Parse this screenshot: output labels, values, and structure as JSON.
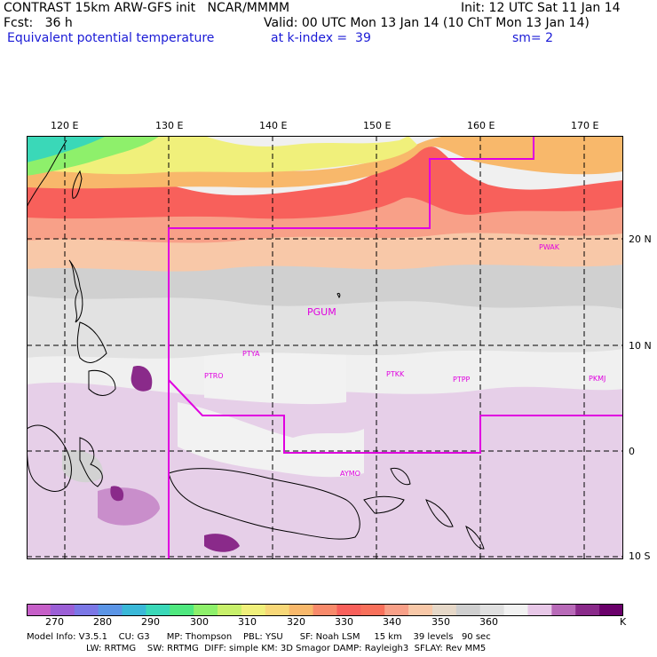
{
  "header": {
    "line1_left": "CONTRAST 15km ARW-GFS init   NCAR/MMMM",
    "line1_right": "Init: 12 UTC Sat 11 Jan 14",
    "line2_left": "Fcst:   36 h",
    "line2_right": "Valid: 00 UTC Mon 13 Jan 14 (10 ChT Mon 13 Jan 14)",
    "line3_left": "Equivalent potential temperature",
    "line3_mid": "at k-index =  39",
    "line3_right": "sm= 2"
  },
  "longitude_labels": [
    "120 E",
    "130 E",
    "140 E",
    "150 E",
    "160 E",
    "170 E"
  ],
  "latitude_labels": [
    "20 N",
    "10 N",
    "0",
    "10 S"
  ],
  "stations": [
    "PWAK",
    "PGUM",
    "PTYA",
    "PTRO",
    "PTKK",
    "PTPP",
    "PKMJ",
    "AYMO"
  ],
  "colorbar": {
    "labels": [
      "270",
      "280",
      "290",
      "300",
      "310",
      "320",
      "330",
      "340",
      "350",
      "360"
    ],
    "unit": "K",
    "colors": [
      "#c65fc8",
      "#9b5fd6",
      "#7b77e6",
      "#5b95e6",
      "#3ab8d8",
      "#3ad8b8",
      "#4fe87f",
      "#8ef06b",
      "#c8f06b",
      "#f0f07b",
      "#f8d878",
      "#f8b86b",
      "#f88a6b",
      "#f8605b",
      "#f8705b",
      "#f8a088",
      "#f8c8a8",
      "#e6d8c8",
      "#cfcfcf",
      "#e0e0e0",
      "#f2f2f2",
      "#e8c8e8",
      "#b86ab8",
      "#8a2a8a",
      "#6a006a"
    ]
  },
  "model_info": {
    "line1": "Model Info: V3.5.1    CU: G3      MP: Thompson    PBL: YSU      SF: Noah LSM     15 km    39 levels   90 sec",
    "line2": "LW: RRTMG    SW: RRTMG  DIFF: simple KM: 3D Smagor DAMP: Rayleigh3  SFLAY: Rev MM5"
  }
}
